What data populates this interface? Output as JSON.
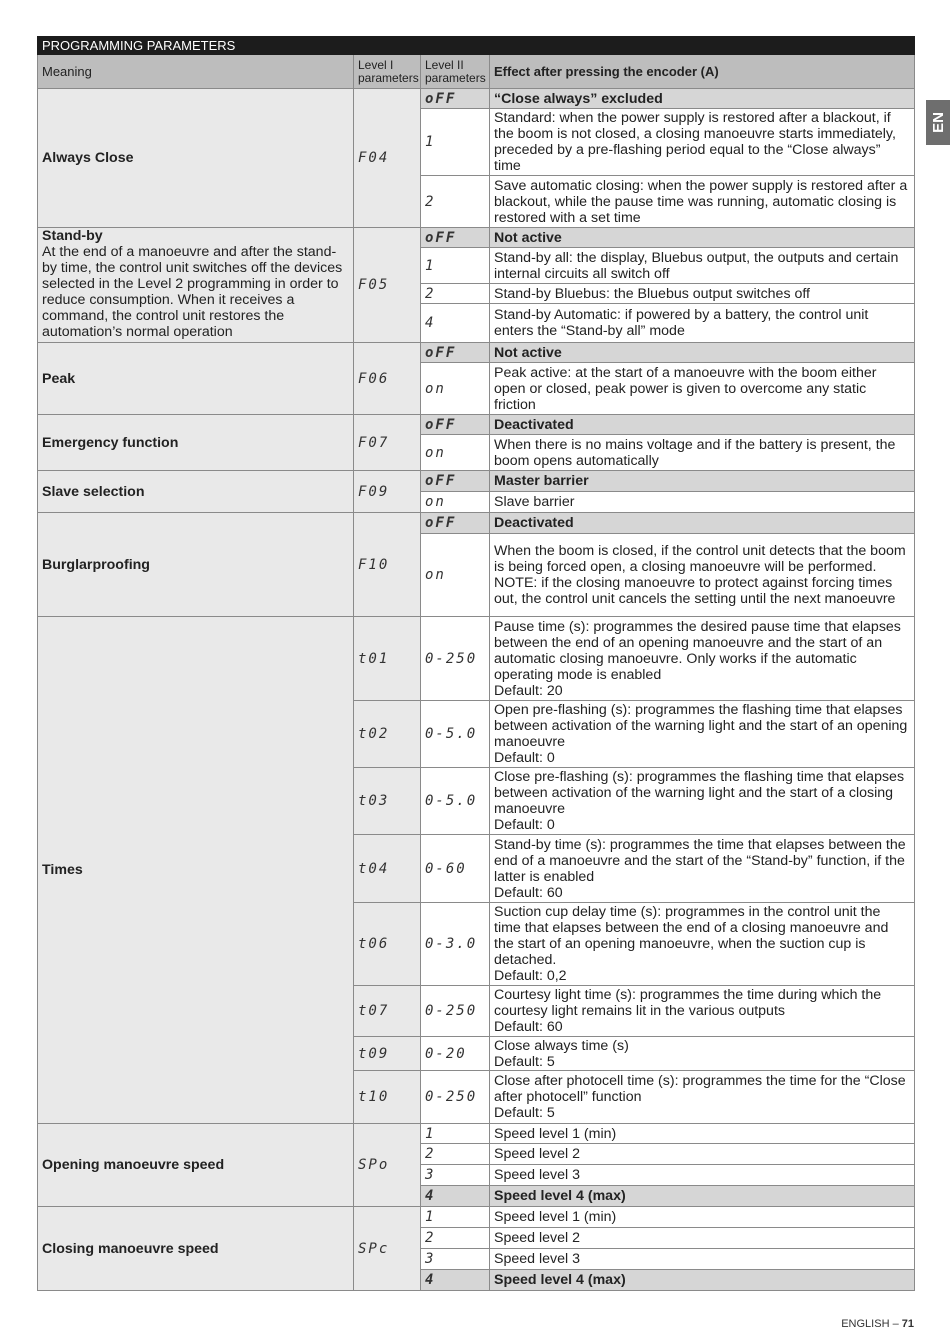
{
  "table_title": "PROGRAMMING PARAMETERS",
  "headers": {
    "meaning": "Meaning",
    "level1": "Level I parameters",
    "level2": "Level II parameters",
    "effect": "Effect after pressing the encoder (A)"
  },
  "groups": [
    {
      "title": "Always Close",
      "level1": "F04",
      "rows": [
        {
          "level2": "oFF",
          "effect": "“Close always” excluded",
          "highlight": true
        },
        {
          "level2": "1",
          "effect": "Standard: when the power supply is restored after a blackout, if the boom is not closed, a closing manoeuvre starts immediately, preceded by a pre-flashing period equal to the “Close always” time"
        },
        {
          "level2": "2",
          "effect": "Save automatic closing: when the power supply is restored after a blackout, while the pause time was running, automatic closing is restored with a set time"
        }
      ]
    },
    {
      "title": "Stand-by",
      "body": "At the end of a manoeuvre and after the stand-by time, the control unit switches off the devices selected in the Level 2 programming in order to reduce consumption. When it receives a command, the control unit restores the automation’s normal operation",
      "level1": "F05",
      "rows": [
        {
          "level2": "oFF",
          "effect": "Not active",
          "highlight": true
        },
        {
          "level2": "1",
          "effect": "Stand-by all: the display, Bluebus output, the outputs and certain internal circuits all switch off"
        },
        {
          "level2": "2",
          "effect": "Stand-by Bluebus: the Bluebus output switches off"
        },
        {
          "level2": "4",
          "effect": "Stand-by Automatic: if powered by a battery, the control unit enters the “Stand-by all” mode"
        }
      ]
    },
    {
      "title": "Peak",
      "level1": "F06",
      "rows": [
        {
          "level2": "oFF",
          "effect": "Not active",
          "highlight": true
        },
        {
          "level2": "on",
          "effect": "Peak active: at the start of a manoeuvre with the boom either open or closed, peak power is given to overcome any static friction"
        }
      ]
    },
    {
      "title": "Emergency function",
      "level1": "F07",
      "rows": [
        {
          "level2": "oFF",
          "effect": "Deactivated",
          "highlight": true
        },
        {
          "level2": "on",
          "effect": "When there is no mains voltage and if the battery is present, the boom opens automatically"
        }
      ]
    },
    {
      "title": "Slave selection",
      "level1": "F09",
      "rows": [
        {
          "level2": "oFF",
          "effect": "Master barrier",
          "highlight": true
        },
        {
          "level2": "on",
          "effect": "Slave barrier"
        }
      ]
    },
    {
      "title": "Burglarproofing",
      "level1": "F10",
      "rows": [
        {
          "level2": "oFF",
          "effect": "Deactivated",
          "highlight": true
        },
        {
          "level2": "on",
          "effect": "When the boom is closed, if the control unit detects that the boom is being forced open, a closing manoeuvre will be performed. NOTE: if the closing manoeuvre to protect against forcing times out, the control unit cancels the setting until the next manoeuvre"
        }
      ]
    },
    {
      "title": "Times",
      "rows": [
        {
          "level1": "t01",
          "level2": "0-250",
          "effect": "Pause time (s): programmes the desired pause time that elapses between the end of an opening manoeuvre and the start of an automatic closing manoeuvre. Only works if the automatic operating mode is enabled",
          "default": "Default: 20"
        },
        {
          "level1": "t02",
          "level2": "0-5.0",
          "effect": "Open pre-flashing (s): programmes the flashing time that elapses between activation of the warning light and the start of an opening manoeuvre",
          "default": "Default: 0"
        },
        {
          "level1": "t03",
          "level2": "0-5.0",
          "effect": "Close pre-flashing (s): programmes the flashing time that elapses between activation of the warning light and the start of a closing manoeuvre",
          "default": "Default: 0"
        },
        {
          "level1": "t04",
          "level2": "0-60",
          "effect": "Stand-by time (s): programmes the time that elapses between the end of a manoeuvre and the start of the “Stand-by” function, if the latter is enabled",
          "default": "Default: 60"
        },
        {
          "level1": "t06",
          "level2": "0-3.0",
          "effect": "Suction cup delay time (s): programmes in the control unit the time that elapses between the end of a closing manoeuvre and the start of an opening manoeuvre, when the suction cup is detached.",
          "default": "Default: 0,2"
        },
        {
          "level1": "t07",
          "level2": "0-250",
          "effect": "Courtesy light time (s): programmes the time during which the courtesy light remains lit in the various outputs",
          "default": "Default: 60"
        },
        {
          "level1": "t09",
          "level2": "0-20",
          "effect": "Close always time (s)",
          "default": "Default: 5"
        },
        {
          "level1": "t10",
          "level2": "0-250",
          "effect": "Close after photocell time (s): programmes the time for the “Close after photocell” function",
          "default": "Default: 5"
        }
      ]
    },
    {
      "title": "Opening manoeuvre speed",
      "level1": "SPo",
      "rows": [
        {
          "level2": "1",
          "effect": "Speed level 1 (min)"
        },
        {
          "level2": "2",
          "effect": "Speed level 2"
        },
        {
          "level2": "3",
          "effect": "Speed level 3"
        },
        {
          "level2": "4",
          "effect": "Speed level 4 (max)",
          "highlight": true
        }
      ]
    },
    {
      "title": "Closing manoeuvre speed",
      "level1": "SPc",
      "rows": [
        {
          "level2": "1",
          "effect": "Speed level 1 (min)"
        },
        {
          "level2": "2",
          "effect": "Speed level 2"
        },
        {
          "level2": "3",
          "effect": "Speed level 3"
        },
        {
          "level2": "4",
          "effect": "Speed level 4 (max)",
          "highlight": true
        }
      ]
    }
  ],
  "language_tab": "EN",
  "footer": {
    "language": "ENGLISH –",
    "page": "71"
  }
}
